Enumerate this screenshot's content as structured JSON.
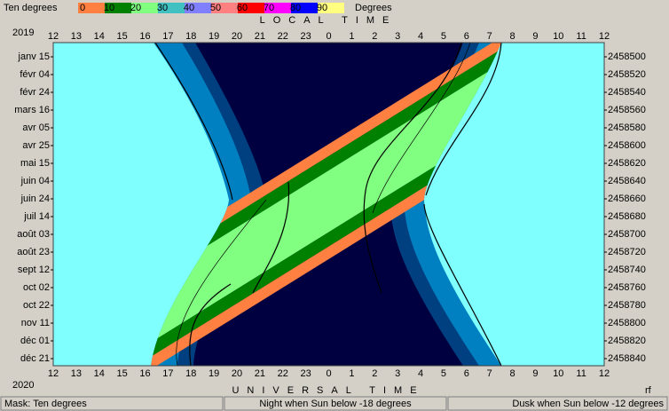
{
  "header": {
    "mask_label": "Ten degrees",
    "scale_labels": [
      0,
      10,
      20,
      30,
      40,
      50,
      60,
      70,
      80,
      90
    ],
    "scale_colors": [
      "#ff8040",
      "#008000",
      "#80ff80",
      "#40c0c0",
      "#8080ff",
      "#ff8080",
      "#ff0000",
      "#ff00ff",
      "#0000ff",
      "#ffff80"
    ],
    "unit": "Degrees",
    "year_top": "2019",
    "top_axis_title": "LOCAL TIME"
  },
  "hours_top": [
    12,
    13,
    14,
    15,
    16,
    17,
    18,
    19,
    20,
    21,
    22,
    23,
    0,
    1,
    2,
    3,
    4,
    5,
    6,
    7,
    8,
    9,
    10,
    11,
    12
  ],
  "hours_bottom": [
    12,
    13,
    14,
    15,
    16,
    17,
    18,
    19,
    20,
    21,
    22,
    23,
    0,
    1,
    2,
    3,
    4,
    5,
    6,
    7,
    8,
    9,
    10,
    11,
    12
  ],
  "dates": [
    "janv 15",
    "févr 04",
    "févr 24",
    "mars 16",
    "avr 05",
    "avr 25",
    "mai 15",
    "juin 04",
    "juin 24",
    "juil 14",
    "août 03",
    "août 23",
    "sept 12",
    "oct 02",
    "oct 22",
    "nov 11",
    "déc 01",
    "déc 21"
  ],
  "julian_days": [
    2458500,
    2458520,
    2458540,
    2458560,
    2458580,
    2458600,
    2458620,
    2458640,
    2458660,
    2458680,
    2458700,
    2458720,
    2458740,
    2458760,
    2458780,
    2458800,
    2458820,
    2458840
  ],
  "footer": {
    "year_bottom": "2020",
    "bottom_axis_title": "UNIVERSAL TIME",
    "corner": "rf"
  },
  "status_bar": {
    "mask": "Mask:  Ten degrees",
    "night": "Night when Sun below -18 degrees",
    "dusk": "Dusk when Sun below -12 degrees"
  }
}
